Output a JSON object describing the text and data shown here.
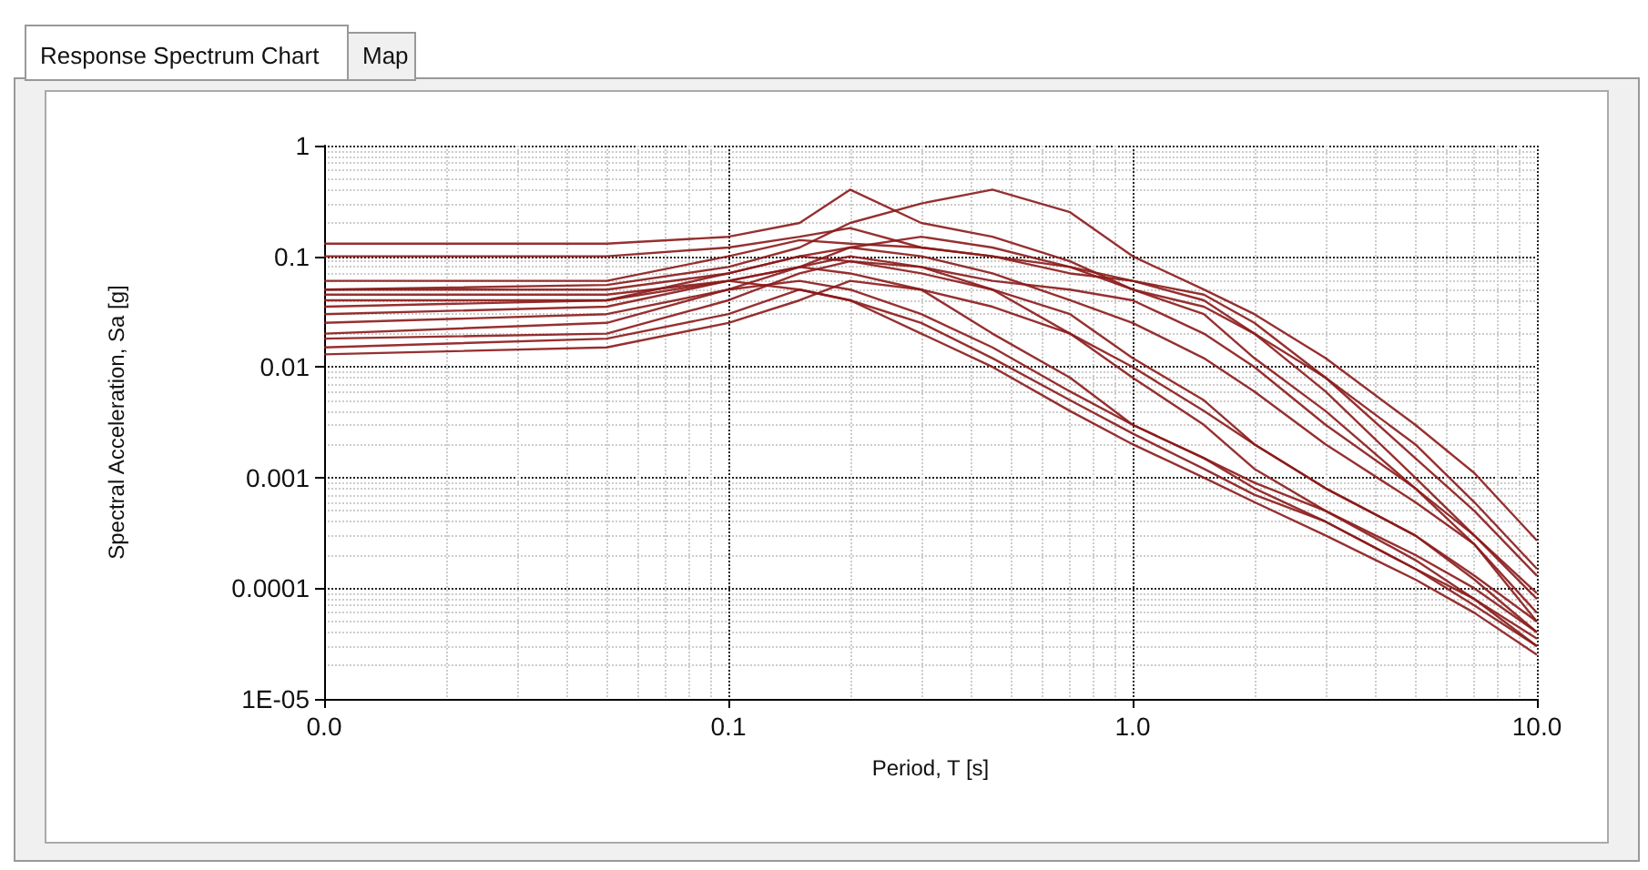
{
  "chart_data": {
    "type": "line",
    "xlabel": "Period, T [s]",
    "ylabel": "Spectral Acceleration, Sa [g]",
    "annotations": [
      "Response Spectrum Chart",
      "Map"
    ],
    "log": "xy",
    "grid": true,
    "marker": "none",
    "line_style": "solid",
    "xlim": [
      0.01,
      10
    ],
    "xticks": [
      {
        "value": 0.01,
        "label": "0.0"
      },
      0.1,
      {
        "value": 1,
        "label": "1.0"
      },
      {
        "value": 10,
        "label": "10.0"
      }
    ],
    "ylim": [
      1e-05,
      1
    ],
    "yticks": [
      {
        "value": 1e-05,
        "label": "1E-05"
      },
      0.0001,
      0.001,
      0.01,
      0.1,
      1
    ],
    "x": [
      0.01,
      0.05,
      0.1,
      0.15,
      0.2,
      0.3,
      0.45,
      0.7,
      1,
      1.5,
      2,
      3,
      5,
      7,
      10
    ],
    "series": [
      {
        "color": "#8b1a1a",
        "values": [
          0.05,
          0.055,
          0.08,
          0.12,
          0.2,
          0.3,
          0.4,
          0.25,
          0.1,
          0.05,
          0.03,
          0.012,
          0.003,
          0.0011,
          0.00027
        ]
      },
      {
        "color": "#8b1a1a",
        "values": [
          0.13,
          0.13,
          0.15,
          0.2,
          0.4,
          0.2,
          0.15,
          0.09,
          0.05,
          0.03,
          0.012,
          0.004,
          0.0008,
          0.00025,
          5e-05
        ]
      },
      {
        "color": "#8b1a1a",
        "values": [
          0.1,
          0.1,
          0.12,
          0.15,
          0.18,
          0.12,
          0.1,
          0.07,
          0.06,
          0.045,
          0.025,
          0.008,
          0.0015,
          0.0005,
          0.00013
        ]
      },
      {
        "color": "#8b1a1a",
        "values": [
          0.05,
          0.05,
          0.07,
          0.1,
          0.12,
          0.15,
          0.12,
          0.08,
          0.06,
          0.04,
          0.02,
          0.006,
          0.001,
          0.0003,
          8e-05
        ]
      },
      {
        "color": "#8b1a1a",
        "values": [
          0.045,
          0.045,
          0.06,
          0.08,
          0.07,
          0.05,
          0.02,
          0.008,
          0.003,
          0.0015,
          0.0008,
          0.0004,
          0.00015,
          7e-05,
          3e-05
        ]
      },
      {
        "color": "#8b1a1a",
        "values": [
          0.04,
          0.04,
          0.06,
          0.05,
          0.04,
          0.02,
          0.01,
          0.004,
          0.002,
          0.001,
          0.0006,
          0.0003,
          0.00012,
          6e-05,
          2.5e-05
        ]
      },
      {
        "color": "#8b1a1a",
        "values": [
          0.035,
          0.04,
          0.07,
          0.1,
          0.09,
          0.07,
          0.05,
          0.03,
          0.012,
          0.005,
          0.002,
          0.0008,
          0.0003,
          0.00012,
          4e-05
        ]
      },
      {
        "color": "#8b1a1a",
        "values": [
          0.03,
          0.035,
          0.06,
          0.08,
          0.1,
          0.08,
          0.06,
          0.05,
          0.04,
          0.02,
          0.01,
          0.003,
          0.0008,
          0.0003,
          9e-05
        ]
      },
      {
        "color": "#8b1a1a",
        "values": [
          0.025,
          0.03,
          0.05,
          0.06,
          0.05,
          0.03,
          0.015,
          0.006,
          0.003,
          0.0015,
          0.0009,
          0.0005,
          0.0002,
          0.0001,
          4e-05
        ]
      },
      {
        "color": "#8b1a1a",
        "values": [
          0.02,
          0.025,
          0.05,
          0.08,
          0.12,
          0.1,
          0.07,
          0.04,
          0.025,
          0.012,
          0.006,
          0.002,
          0.0006,
          0.00025,
          6e-05
        ]
      },
      {
        "color": "#8b1a1a",
        "values": [
          0.018,
          0.02,
          0.04,
          0.07,
          0.09,
          0.08,
          0.05,
          0.02,
          0.008,
          0.003,
          0.0012,
          0.0005,
          0.00018,
          8e-05,
          3e-05
        ]
      },
      {
        "color": "#8b1a1a",
        "values": [
          0.015,
          0.018,
          0.03,
          0.05,
          0.04,
          0.025,
          0.012,
          0.005,
          0.0025,
          0.0012,
          0.0007,
          0.0004,
          0.00015,
          8e-05,
          3.5e-05
        ]
      },
      {
        "color": "#8b1a1a",
        "values": [
          0.013,
          0.015,
          0.025,
          0.04,
          0.06,
          0.05,
          0.035,
          0.02,
          0.01,
          0.004,
          0.002,
          0.0008,
          0.0003,
          0.00013,
          5e-05
        ]
      },
      {
        "color": "#8b1a1a",
        "values": [
          0.06,
          0.06,
          0.1,
          0.14,
          0.13,
          0.12,
          0.1,
          0.08,
          0.05,
          0.035,
          0.02,
          0.008,
          0.002,
          0.0006,
          0.00015
        ]
      }
    ]
  }
}
